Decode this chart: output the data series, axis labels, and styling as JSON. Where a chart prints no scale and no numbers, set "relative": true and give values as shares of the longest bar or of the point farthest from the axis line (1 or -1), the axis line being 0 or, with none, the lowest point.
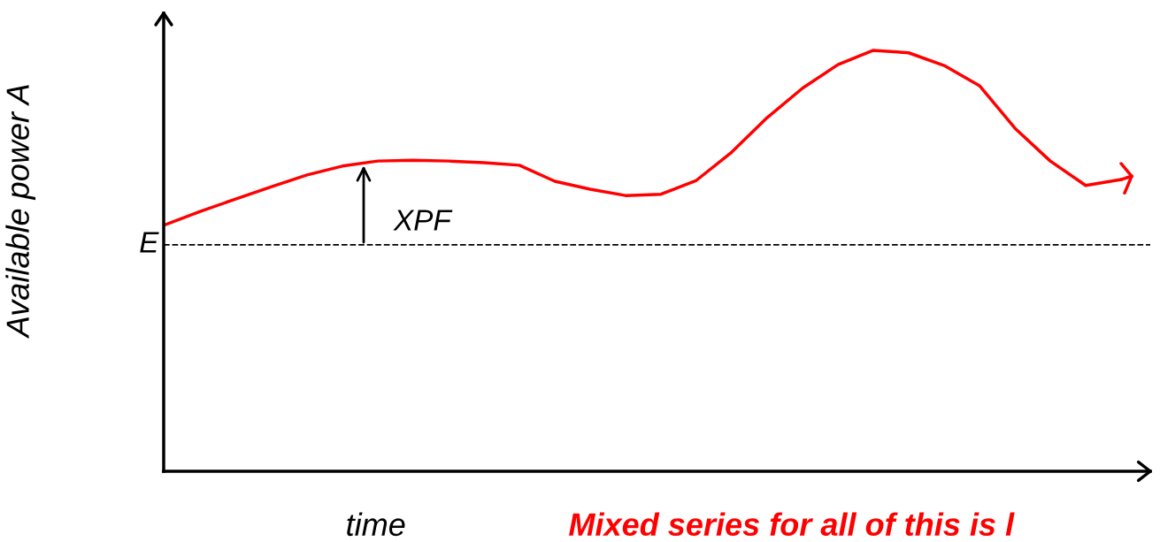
{
  "chart_data": {
    "type": "line",
    "relative": true,
    "xlabel": "time",
    "ylabel": "Available power A",
    "categories": [
      null,
      null,
      null,
      null,
      null,
      null,
      null,
      null,
      null,
      null,
      null,
      null,
      null,
      null,
      null,
      null,
      null,
      null,
      null,
      null,
      null,
      null,
      null,
      null,
      null,
      null,
      null,
      null
    ],
    "series": [
      {
        "color": "#ff0000",
        "values": [
          0.586,
          0.618,
          0.647,
          0.676,
          0.704,
          0.725,
          0.737,
          0.739,
          0.737,
          0.733,
          0.727,
          0.689,
          0.67,
          0.655,
          0.658,
          0.691,
          0.758,
          0.84,
          0.91,
          0.966,
          1.0,
          0.994,
          0.964,
          0.916,
          0.815,
          0.737,
          0.679,
          0.693
        ]
      }
    ],
    "ref_lines": [
      {
        "axis": "y",
        "value": 0.538,
        "label": "E",
        "color": "#000000",
        "line_style": "dashed"
      }
    ],
    "annotations": [
      "XPF",
      "Mixed series for all of this is l"
    ],
    "legend": false,
    "tick_labels": false,
    "marker": "none",
    "line_style": "solid"
  }
}
